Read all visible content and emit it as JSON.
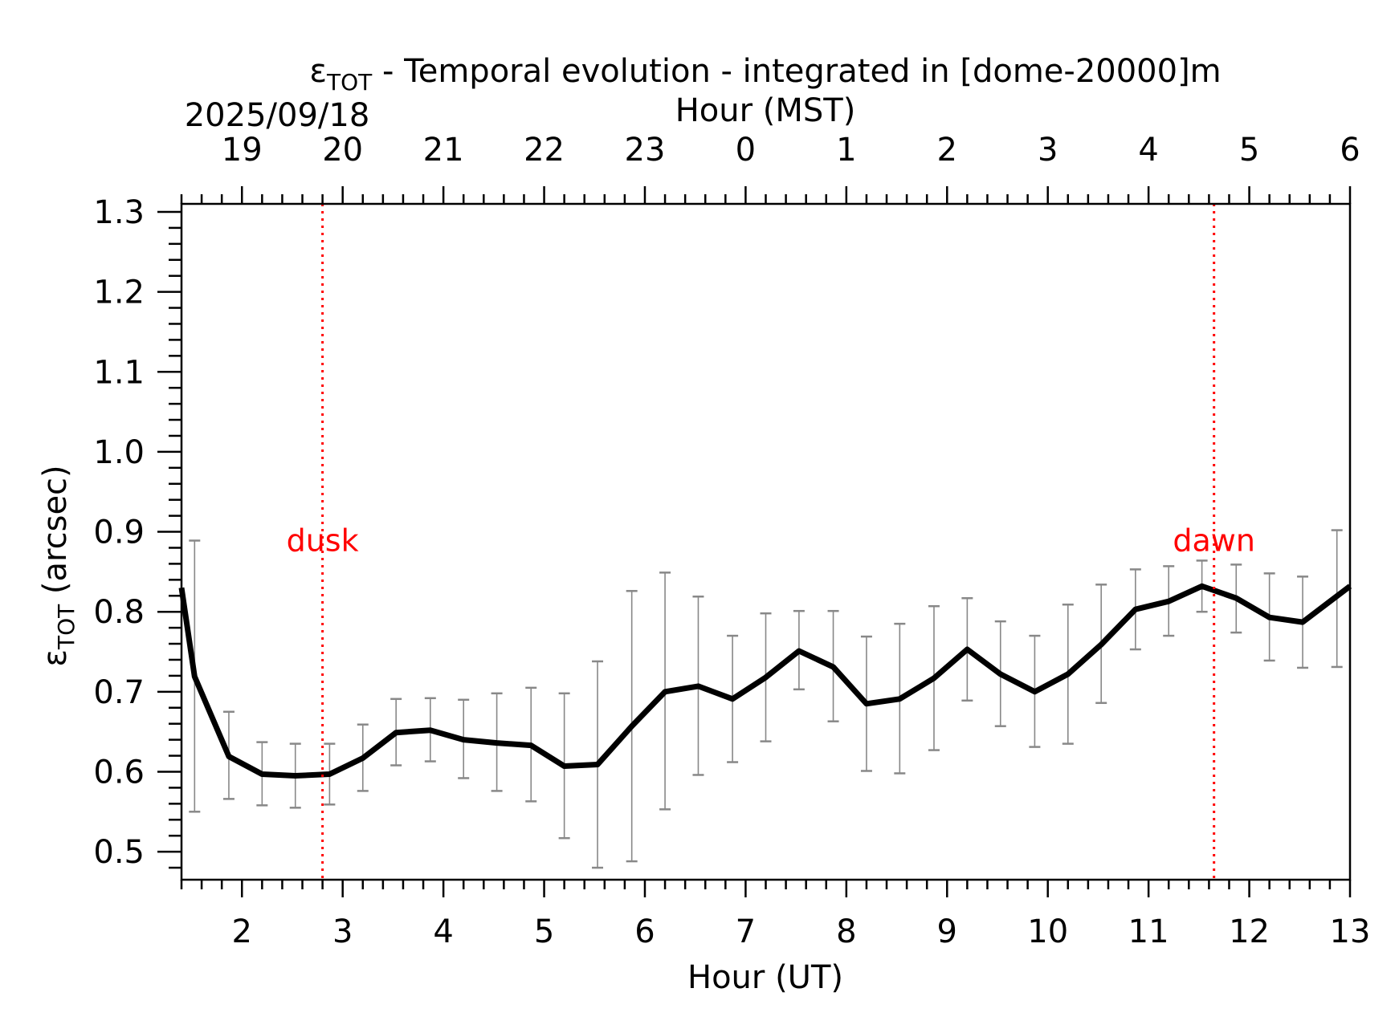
{
  "chart_data": {
    "type": "line",
    "title": {
      "main": "ε",
      "sub": "TOT",
      "rest": " - Temporal evolution - integrated in [dome-20000]m"
    },
    "date_label": "2025/09/18",
    "top_axis_label": "Hour (MST)",
    "xlabel": "Hour (UT)",
    "ylabel": {
      "main": "ε",
      "sub": "TOT",
      "rest": " (arcsec)"
    },
    "xlim": [
      1.4,
      13.0
    ],
    "ylim": [
      0.465,
      1.31
    ],
    "x_ticks": [
      2,
      3,
      4,
      5,
      6,
      7,
      8,
      9,
      10,
      11,
      12,
      13
    ],
    "x_tick_labels": [
      "2",
      "3",
      "4",
      "5",
      "6",
      "7",
      "8",
      "9",
      "10",
      "11",
      "12",
      "13"
    ],
    "top_ticks_ut": [
      2,
      3,
      4,
      5,
      6,
      7,
      8,
      9,
      10,
      11,
      12,
      13
    ],
    "top_tick_labels": [
      "19",
      "20",
      "21",
      "22",
      "23",
      "0",
      "1",
      "2",
      "3",
      "4",
      "5",
      "6"
    ],
    "y_ticks": [
      0.5,
      0.6,
      0.7,
      0.8,
      0.9,
      1.0,
      1.1,
      1.2,
      1.3
    ],
    "y_tick_labels": [
      "0.5",
      "0.6",
      "0.7",
      "0.8",
      "0.9",
      "1.0",
      "1.1",
      "1.2",
      "1.3"
    ],
    "series": [
      {
        "color": "#000000",
        "x": [
          1.4,
          1.53,
          1.87,
          2.2,
          2.53,
          2.87,
          3.2,
          3.53,
          3.87,
          4.2,
          4.53,
          4.87,
          5.2,
          5.53,
          5.87,
          6.2,
          6.53,
          6.87,
          7.2,
          7.53,
          7.87,
          8.2,
          8.53,
          8.87,
          9.2,
          9.53,
          9.87,
          10.2,
          10.53,
          10.87,
          11.2,
          11.53,
          11.87,
          12.2,
          12.53,
          13.0
        ],
        "y": [
          0.83,
          0.719,
          0.619,
          0.597,
          0.595,
          0.597,
          0.617,
          0.649,
          0.652,
          0.64,
          0.636,
          0.633,
          0.607,
          0.609,
          0.657,
          0.7,
          0.707,
          0.691,
          0.718,
          0.751,
          0.731,
          0.685,
          0.691,
          0.717,
          0.753,
          0.722,
          0.7,
          0.722,
          0.759,
          0.803,
          0.813,
          0.832,
          0.817,
          0.793,
          0.787,
          0.832
        ]
      }
    ],
    "error_bars": {
      "color": "#888888",
      "x": [
        1.53,
        1.87,
        2.2,
        2.53,
        2.87,
        3.2,
        3.53,
        3.87,
        4.2,
        4.53,
        4.87,
        5.2,
        5.53,
        5.87,
        6.2,
        6.53,
        6.87,
        7.2,
        7.53,
        7.87,
        8.2,
        8.53,
        8.87,
        9.2,
        9.53,
        9.87,
        10.2,
        10.53,
        10.87,
        11.2,
        11.53,
        11.87,
        12.2,
        12.53,
        12.87
      ],
      "low": [
        0.55,
        0.566,
        0.558,
        0.555,
        0.559,
        0.576,
        0.608,
        0.613,
        0.592,
        0.576,
        0.563,
        0.517,
        0.48,
        0.488,
        0.553,
        0.596,
        0.612,
        0.638,
        0.703,
        0.663,
        0.601,
        0.598,
        0.627,
        0.689,
        0.657,
        0.631,
        0.635,
        0.686,
        0.753,
        0.77,
        0.8,
        0.774,
        0.739,
        0.73,
        0.731
      ],
      "high": [
        0.889,
        0.675,
        0.637,
        0.635,
        0.635,
        0.659,
        0.691,
        0.692,
        0.69,
        0.698,
        0.705,
        0.698,
        0.738,
        0.826,
        0.849,
        0.819,
        0.77,
        0.798,
        0.801,
        0.801,
        0.769,
        0.785,
        0.807,
        0.817,
        0.788,
        0.77,
        0.809,
        0.834,
        0.853,
        0.857,
        0.864,
        0.859,
        0.848,
        0.844,
        0.902
      ]
    },
    "vlines": [
      {
        "x": 2.8,
        "label": "dusk",
        "color": "#ff0000",
        "label_y": 0.89
      },
      {
        "x": 11.65,
        "label": "dawn",
        "color": "#ff0000",
        "label_y": 0.89
      }
    ],
    "grid": false
  }
}
